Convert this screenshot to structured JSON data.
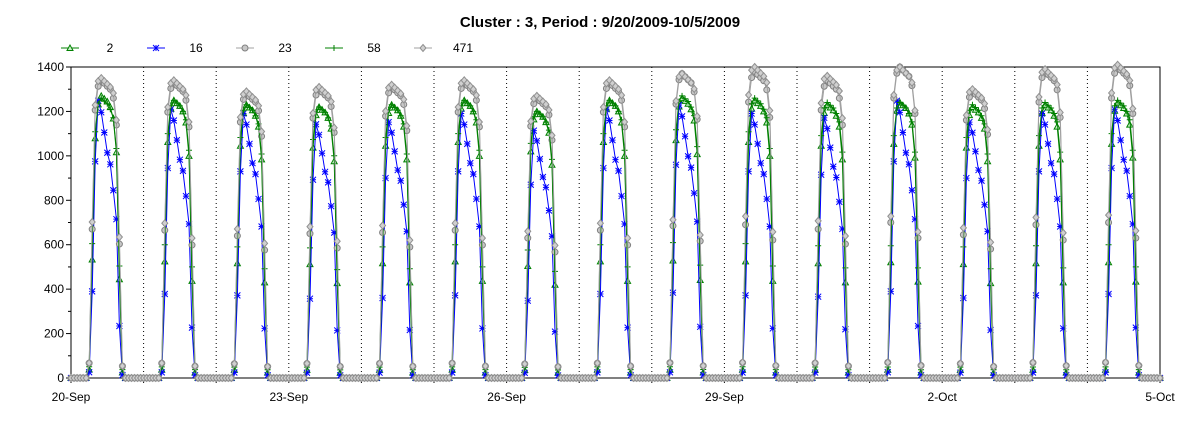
{
  "chart_data": {
    "type": "line",
    "title": "Cluster : 3, Period : 9/20/2009-10/5/2009",
    "xlabel": "",
    "ylabel": "",
    "x_range_days": [
      0,
      15
    ],
    "ylim": [
      0,
      1400
    ],
    "y_ticks": [
      0,
      200,
      400,
      600,
      800,
      1000,
      1200,
      1400
    ],
    "x_ticks": [
      {
        "day": 0,
        "label": "20-Sep"
      },
      {
        "day": 3,
        "label": "23-Sep"
      },
      {
        "day": 6,
        "label": "26-Sep"
      },
      {
        "day": 9,
        "label": "29-Sep"
      },
      {
        "day": 12,
        "label": "2-Oct"
      },
      {
        "day": 15,
        "label": "5-Oct"
      }
    ],
    "grid": {
      "vertical_dotted": true,
      "horizontal": false
    },
    "legend_position": "top-left",
    "sample_interval_hours": 1,
    "day_profile_hours": [
      6,
      7,
      8,
      9,
      10,
      11,
      12,
      13,
      14,
      15,
      16,
      17
    ],
    "series": [
      {
        "name": "2",
        "color": "#008000",
        "marker": "triangle",
        "day_peaks": [
          1270,
          1250,
          1230,
          1220,
          1230,
          1250,
          1200,
          1250,
          1260,
          1250,
          1230,
          1240,
          1220,
          1230,
          1240
        ],
        "day_profile_frac": [
          0.03,
          0.42,
          0.85,
          0.97,
          1.0,
          0.99,
          0.98,
          0.96,
          0.92,
          0.8,
          0.35,
          0.02
        ]
      },
      {
        "name": "16",
        "color": "#0000ff",
        "marker": "asterisk",
        "day_peaks": [
          1300,
          1260,
          1240,
          1190,
          1200,
          1240,
          1160,
          1260,
          1280,
          1240,
          1220,
          1300,
          1200,
          1240,
          1260
        ],
        "day_profile_frac": [
          0.02,
          0.3,
          0.75,
          0.96,
          0.92,
          0.85,
          0.78,
          0.74,
          0.65,
          0.55,
          0.18,
          0.01
        ]
      },
      {
        "name": "23",
        "color": "#a0a0a0",
        "marker": "circle",
        "day_peaks": [
          1340,
          1330,
          1280,
          1300,
          1310,
          1330,
          1260,
          1330,
          1370,
          1380,
          1340,
          1400,
          1290,
          1380,
          1400
        ],
        "day_profile_frac": [
          0.05,
          0.5,
          0.9,
          0.98,
          1.0,
          0.99,
          0.98,
          0.97,
          0.94,
          0.85,
          0.45,
          0.04
        ]
      },
      {
        "name": "58",
        "color": "#008000",
        "marker": "plus",
        "day_peaks": [
          1260,
          1250,
          1230,
          1220,
          1230,
          1250,
          1200,
          1250,
          1270,
          1260,
          1240,
          1240,
          1230,
          1240,
          1250
        ],
        "day_profile_frac": [
          0.04,
          0.48,
          0.88,
          0.98,
          1.0,
          0.99,
          0.98,
          0.96,
          0.93,
          0.82,
          0.4,
          0.03
        ]
      },
      {
        "name": "471",
        "color": "#a0a0a0",
        "marker": "diamond",
        "day_peaks": [
          1350,
          1340,
          1290,
          1310,
          1320,
          1340,
          1270,
          1340,
          1370,
          1400,
          1360,
          1400,
          1300,
          1390,
          1410
        ],
        "day_profile_frac": [
          0.05,
          0.52,
          0.91,
          0.99,
          1.0,
          0.99,
          0.98,
          0.97,
          0.95,
          0.86,
          0.47,
          0.04
        ]
      }
    ]
  }
}
